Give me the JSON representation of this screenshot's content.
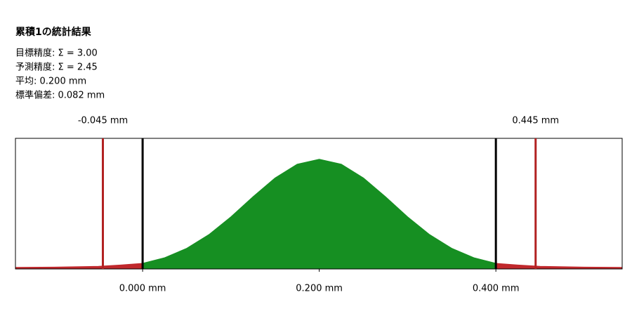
{
  "chart_data": {
    "type": "area",
    "title": "累積1の統計結果",
    "info": [
      "目標精度: Σ = 3.00",
      "予測精度: Σ = 2.45",
      "平均: 0.200 mm",
      "標準偏差: 0.082 mm"
    ],
    "xlim": [
      -0.144,
      0.543
    ],
    "ylim": [
      0,
      1
    ],
    "xticks": [
      {
        "value": 0,
        "label": "0.000 mm"
      },
      {
        "value": 0.2,
        "label": "0.200 mm"
      },
      {
        "value": 0.4,
        "label": "0.400 mm"
      }
    ],
    "limit_lines": {
      "color": "#000000",
      "values": [
        0,
        0.4
      ]
    },
    "markers": {
      "color": "#b22222",
      "values": [
        {
          "value": -0.045,
          "label": "-0.045 mm"
        },
        {
          "value": 0.445,
          "label": "0.445 mm"
        }
      ]
    },
    "series": [
      {
        "color": "#c0282c",
        "x": [
          -0.144,
          -0.1,
          -0.05,
          -0.025,
          0
        ],
        "values": [
          0.012,
          0.014,
          0.02,
          0.03,
          0.043
        ]
      },
      {
        "color": "#168f22",
        "x": [
          0,
          0.025,
          0.05,
          0.075,
          0.1,
          0.125,
          0.15,
          0.175,
          0.2,
          0.225,
          0.25,
          0.275,
          0.3,
          0.325,
          0.35,
          0.375,
          0.4
        ],
        "values": [
          0.043,
          0.086,
          0.158,
          0.263,
          0.399,
          0.553,
          0.697,
          0.802,
          0.84,
          0.802,
          0.697,
          0.553,
          0.399,
          0.263,
          0.158,
          0.086,
          0.043
        ]
      },
      {
        "color": "#c0282c",
        "x": [
          0.4,
          0.425,
          0.45,
          0.5,
          0.543
        ],
        "values": [
          0.043,
          0.03,
          0.02,
          0.014,
          0.012
        ]
      }
    ]
  }
}
